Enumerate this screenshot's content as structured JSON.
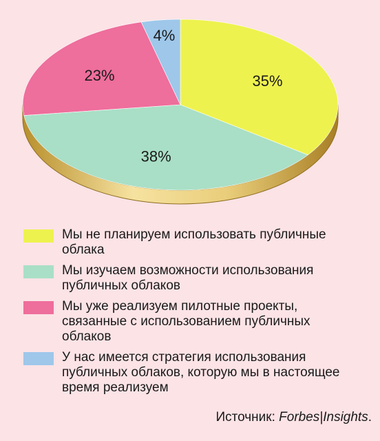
{
  "chart_data": {
    "type": "pie",
    "slices": [
      {
        "label": "35%",
        "value": 35,
        "color": "#eef24e",
        "legend": "Мы не планируем использовать публичные\nоблака"
      },
      {
        "label": "38%",
        "value": 38,
        "color": "#a9dfc6",
        "legend": "Мы изучаем возможности использования\nпубличных облаков"
      },
      {
        "label": "23%",
        "value": 23,
        "color": "#ee6e9c",
        "legend": "Мы уже реализуем пилотные проекты,\nсвязанные с использованием публичных\nоблаков"
      },
      {
        "label": "4%",
        "value": 4,
        "color": "#9ec7ea",
        "legend": "У нас имеется стратегия использования\nпубличных облаков, которую мы в настоящее\nвремя реализуем"
      }
    ]
  },
  "source": {
    "prefix": "Источник: ",
    "brand": "Forbes|Insights",
    "suffix": "."
  },
  "colors": {
    "background": "#fbe3e6",
    "rim": "#d8b85a"
  }
}
